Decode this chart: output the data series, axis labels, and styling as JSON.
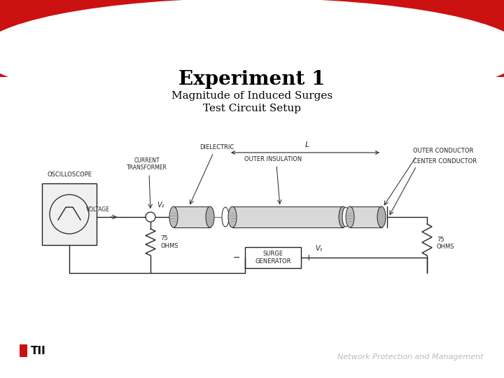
{
  "title": "Experiment 1",
  "subtitle_line1": "Magnitude of Induced Surges",
  "subtitle_line2": "Test Circuit Setup",
  "footer_right": "Network Protection and Management",
  "bg_color": "#ffffff",
  "red_color": "#cc1111",
  "title_fontsize": 20,
  "subtitle_fontsize": 11,
  "footer_fontsize": 8,
  "circuit_color": "#222222",
  "circuit_lw": 1.0
}
